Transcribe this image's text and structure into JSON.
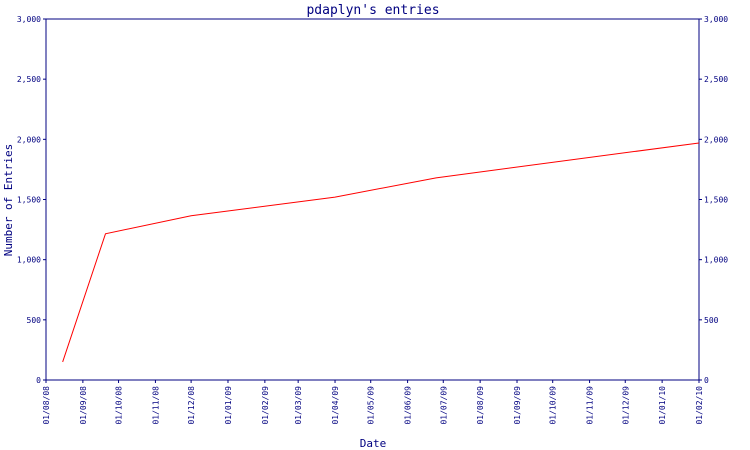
{
  "chart_data": {
    "type": "line",
    "title": "pdaplyn's entries",
    "xlabel": "Date",
    "ylabel": "Number of Entries",
    "ylim": [
      0,
      3000
    ],
    "y_ticks": [
      "0",
      "500",
      "1,000",
      "1,500",
      "2,000",
      "2,500",
      "3,000"
    ],
    "x_ticks": [
      "01/08/08",
      "01/09/08",
      "01/10/08",
      "01/11/08",
      "01/12/08",
      "01/01/09",
      "01/02/09",
      "01/03/09",
      "01/04/09",
      "01/05/09",
      "01/06/09",
      "01/07/09",
      "01/08/09",
      "01/09/09",
      "01/10/09",
      "01/11/09",
      "01/12/09",
      "01/01/10",
      "01/02/10"
    ],
    "grid": false,
    "line_color": "#ff0000",
    "axis_color": "#000080",
    "text_color": "#000080",
    "series": [
      {
        "x": [
          "2008-08-15",
          "2008-09-20",
          "2008-12-01",
          "2009-04-01",
          "2009-06-25",
          "2010-02-01"
        ],
        "y": [
          150,
          1215,
          1365,
          1520,
          1680,
          1970
        ]
      }
    ]
  }
}
